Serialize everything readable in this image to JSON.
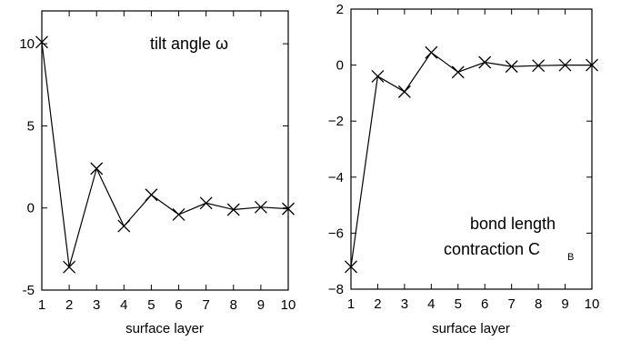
{
  "chart_data": [
    {
      "type": "line",
      "xlabel": "surface layer",
      "ylabel": "",
      "xlim": [
        1,
        10
      ],
      "ylim": [
        -5,
        12
      ],
      "xticks": [
        "1",
        "2",
        "3",
        "4",
        "5",
        "6",
        "7",
        "8",
        "9",
        "10"
      ],
      "yticks": [
        "10",
        "5",
        "0",
        "-5"
      ],
      "ytick_values": [
        10,
        5,
        0,
        -5
      ],
      "annotation": "tilt angle ω",
      "marker": "x",
      "grid": false,
      "x": [
        1,
        2,
        3,
        4,
        5,
        6,
        7,
        8,
        9,
        10
      ],
      "series": [
        {
          "values": [
            10.1,
            -3.6,
            2.4,
            -1.1,
            0.8,
            -0.4,
            0.3,
            -0.1,
            0.05,
            -0.05
          ]
        }
      ]
    },
    {
      "type": "line",
      "xlabel": "surface layer",
      "ylabel": "",
      "xlim": [
        1,
        10
      ],
      "ylim": [
        -8,
        2
      ],
      "xticks": [
        "1",
        "2",
        "3",
        "4",
        "5",
        "6",
        "7",
        "8",
        "9",
        "10"
      ],
      "yticks": [
        "2",
        "0",
        "−2",
        "−4",
        "−6",
        "−8"
      ],
      "ytick_values": [
        2,
        0,
        -2,
        -4,
        -6,
        -8
      ],
      "annotation_lines": [
        "bond length",
        "contraction C"
      ],
      "annotation_subscript": "B",
      "marker": "x",
      "grid": false,
      "x": [
        1,
        2,
        3,
        4,
        5,
        6,
        7,
        8,
        9,
        10
      ],
      "series": [
        {
          "values": [
            -7.2,
            -0.4,
            -0.95,
            0.45,
            -0.25,
            0.1,
            -0.05,
            -0.02,
            0.0,
            0.0
          ]
        }
      ]
    }
  ]
}
